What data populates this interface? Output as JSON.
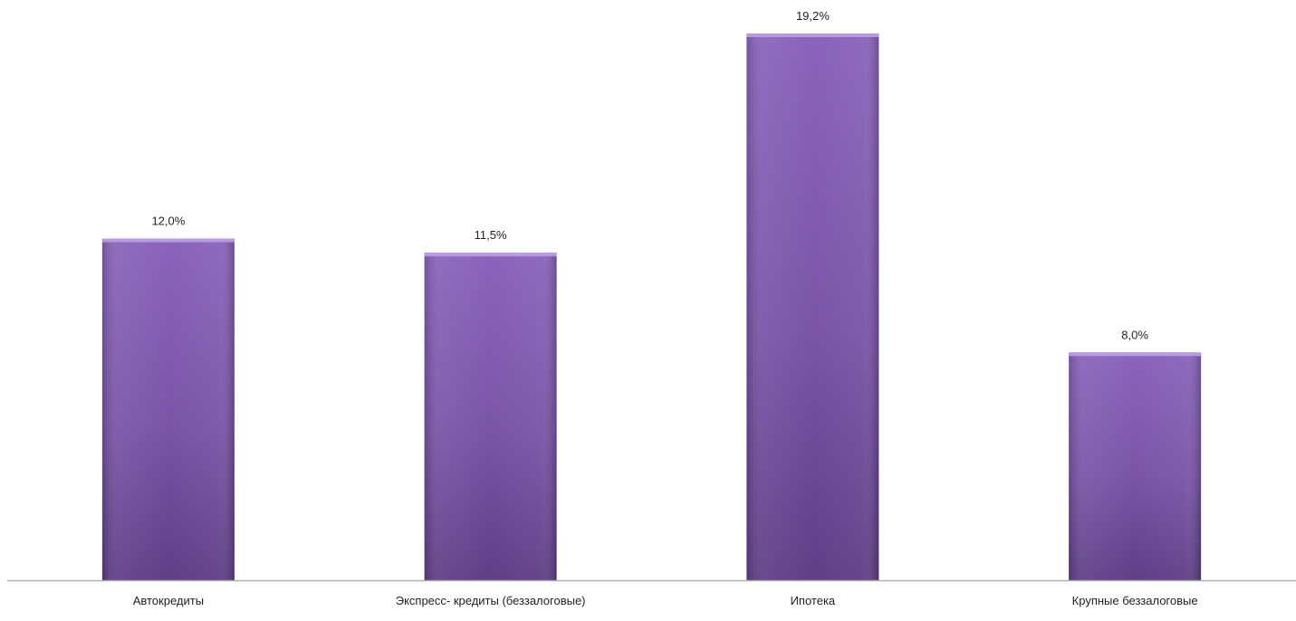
{
  "chart_data": {
    "type": "bar",
    "title": "",
    "xlabel": "",
    "ylabel": "",
    "categories": [
      "Автокредиты",
      "Экспресс- кредиты (беззалоговые)",
      "Ипотека",
      "Крупные беззалоговые"
    ],
    "values": [
      12.0,
      11.5,
      19.2,
      8.0
    ],
    "data_labels": [
      "12,0%",
      "11,5%",
      "19,2%",
      "8,0%"
    ],
    "ylim": [
      0,
      20
    ],
    "grid": false,
    "legend": "none",
    "colors": {
      "bar_top": "#8a64bc",
      "bar_mid": "#7a55a8",
      "bar_bottom": "#5f3f86",
      "bar_cap": "#b79ae0",
      "axis": "#b0b0b0"
    }
  }
}
